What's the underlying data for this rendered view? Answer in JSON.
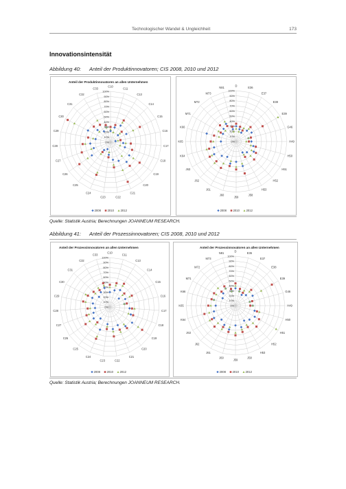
{
  "header": {
    "running_title": "Technologischer Wandel & Ungleichheit",
    "page_number": "173"
  },
  "section_heading": "Innovationsintensität",
  "figures": [
    {
      "label": "Abbildung 40:",
      "caption": "Anteil der Produktinnovatoren; CIS 2008, 2010 und 2012",
      "source": "Quelle: Statistik Austria; Berechnungen JOANNEUM RESEARCH."
    },
    {
      "label": "Abbildung 41:",
      "caption": "Anteil der Prozessinnovatoren; CIS 2008, 2010 und 2012",
      "source": "Quelle: Statistik Austria; Berechnungen JOANNEUM RESEARCH."
    }
  ],
  "series_colors": {
    "2008": "#4472c4",
    "2010": "#c0504d",
    "2012": "#9bbb59"
  },
  "chart_data": [
    {
      "type": "scatter",
      "projection": "radar",
      "title": "Anteil der Produktinnovatoren an allen Unternehmen",
      "radial_ticks": [
        "0%",
        "10%",
        "20%",
        "30%",
        "40%",
        "50%",
        "60%",
        "70%",
        "80%",
        "90%",
        "100%"
      ],
      "categories": [
        "C10",
        "C11",
        "C13",
        "C14",
        "C15",
        "C16",
        "C17",
        "C18",
        "C19",
        "C20",
        "C21",
        "C22",
        "C23",
        "C24",
        "C25",
        "C26",
        "C27",
        "C28",
        "C29",
        "C30",
        "C31",
        "C32",
        "C33"
      ],
      "series": [
        {
          "name": "2008",
          "values": [
            0.22,
            0.3,
            0.38,
            0.2,
            0.35,
            0.1,
            0.25,
            0.3,
            0.45,
            0.5,
            0.4,
            0.35,
            0.25,
            0.15,
            0.2,
            0.45,
            0.35,
            0.4,
            0.3,
            0.5,
            0.35,
            0.25,
            0.3
          ]
        },
        {
          "name": "2010",
          "values": [
            0.3,
            0.35,
            0.5,
            0.3,
            0.65,
            0.2,
            0.4,
            0.45,
            0.7,
            0.6,
            0.85,
            0.5,
            0.3,
            0.7,
            0.25,
            0.75,
            0.6,
            0.55,
            0.45,
            0.95,
            0.45,
            0.4,
            0.35
          ]
        },
        {
          "name": "2012",
          "values": [
            0.25,
            0.2,
            0.45,
            0.25,
            0.5,
            0.15,
            0.3,
            0.2,
            0.55,
            0.35,
            0.6,
            0.45,
            0.2,
            0.65,
            0.3,
            0.55,
            0.4,
            0.5,
            0.35,
            0.8,
            0.3,
            0.5,
            0.3
          ]
        }
      ],
      "legend": "bottom"
    },
    {
      "type": "scatter",
      "projection": "radar",
      "title": "",
      "radial_ticks": [
        "0%",
        "10%",
        "20%",
        "30%",
        "40%",
        "50%",
        "60%",
        "70%",
        "80%",
        "90%",
        "100%"
      ],
      "categories": [
        "D",
        "E36",
        "E37",
        "E38",
        "E39",
        "G46",
        "H49",
        "H50",
        "H51",
        "H52",
        "H53",
        "J58",
        "J59",
        "J60",
        "J61",
        "J62",
        "J63",
        "K64",
        "K65",
        "K66",
        "M71",
        "M72",
        "M73",
        "N81"
      ],
      "series": [
        {
          "name": "2008",
          "values": [
            0.3,
            0.25,
            0.2,
            0.3,
            0.35,
            0.25,
            0.3,
            0.35,
            0.4,
            0.3,
            0.25,
            0.5,
            0.4,
            0.45,
            0.35,
            0.4,
            0.5,
            0.45,
            0.3,
            0.6,
            0.3,
            0.35,
            0.4,
            0.25
          ]
        },
        {
          "name": "2010",
          "values": [
            0.35,
            0.3,
            0.25,
            0.4,
            0.6,
            0.3,
            0.25,
            0.4,
            0.45,
            0.5,
            0.35,
            0.65,
            0.55,
            0.5,
            0.6,
            0.55,
            0.6,
            0.55,
            0.5,
            0.45,
            0.35,
            0.45,
            0.35,
            0.3
          ]
        },
        {
          "name": "2012",
          "values": [
            0.25,
            0.2,
            0.3,
            0.35,
            0.95,
            0.25,
            0.2,
            0.3,
            0.35,
            0.4,
            0.3,
            0.45,
            0.5,
            0.4,
            0.5,
            0.6,
            0.55,
            0.6,
            0.45,
            0.35,
            0.4,
            0.3,
            0.45,
            0.2
          ]
        }
      ],
      "legend": "bottom"
    },
    {
      "type": "scatter",
      "projection": "radar",
      "title": "Anteil der Prozessinnovatoren an allen Unternehmen",
      "radial_ticks": [
        "0%",
        "10%",
        "20%",
        "30%",
        "40%",
        "50%",
        "60%",
        "70%",
        "80%",
        "90%",
        "100%"
      ],
      "categories": [
        "C10",
        "C11",
        "C13",
        "C14",
        "C15",
        "C16",
        "C17",
        "C18",
        "C19",
        "C20",
        "C21",
        "C22",
        "C23",
        "C24",
        "C25",
        "C26",
        "C27",
        "C28",
        "C29",
        "C30",
        "C31",
        "C32",
        "C33"
      ],
      "series": [
        {
          "name": "2008",
          "values": [
            0.3,
            0.35,
            0.4,
            0.25,
            0.35,
            0.3,
            0.4,
            0.45,
            0.55,
            0.5,
            0.4,
            0.45,
            0.35,
            0.5,
            0.3,
            0.4,
            0.35,
            0.3,
            0.35,
            0.4,
            0.3,
            0.35,
            0.4
          ]
        },
        {
          "name": "2010",
          "values": [
            0.45,
            0.5,
            0.55,
            0.4,
            0.5,
            0.35,
            0.45,
            0.5,
            0.8,
            0.55,
            0.5,
            0.6,
            0.45,
            0.7,
            0.4,
            0.6,
            0.5,
            0.45,
            0.55,
            0.5,
            0.45,
            0.4,
            0.5
          ]
        },
        {
          "name": "2012",
          "values": [
            0.4,
            0.45,
            0.5,
            0.35,
            0.45,
            0.3,
            0.5,
            0.4,
            0.7,
            0.45,
            0.55,
            0.5,
            0.4,
            0.65,
            0.45,
            0.5,
            0.45,
            0.4,
            0.5,
            0.55,
            0.4,
            0.45,
            0.45
          ]
        }
      ],
      "legend": "bottom"
    },
    {
      "type": "scatter",
      "projection": "radar",
      "title": "Anteil der Prozessinnovatoren an allen Unternehmen",
      "radial_ticks": [
        "0%",
        "10%",
        "20%",
        "30%",
        "40%",
        "50%",
        "60%",
        "70%",
        "80%",
        "90%",
        "100%"
      ],
      "categories": [
        "D",
        "E36",
        "E37",
        "E38",
        "E39",
        "G46",
        "H49",
        "H50",
        "H51",
        "H52",
        "H53",
        "J58",
        "J59",
        "J60",
        "J61",
        "J62",
        "J63",
        "K64",
        "K65",
        "K66",
        "M71",
        "M72",
        "M73",
        "N81"
      ],
      "series": [
        {
          "name": "2008",
          "values": [
            0.35,
            0.3,
            0.25,
            0.3,
            0.4,
            0.3,
            0.35,
            0.4,
            0.45,
            0.4,
            0.35,
            0.45,
            0.4,
            0.5,
            0.45,
            0.4,
            0.5,
            0.45,
            0.4,
            0.45,
            0.3,
            0.35,
            0.4,
            0.3
          ]
        },
        {
          "name": "2010",
          "values": [
            0.45,
            0.35,
            0.3,
            0.45,
            0.85,
            0.35,
            0.3,
            0.45,
            0.55,
            0.6,
            0.5,
            0.55,
            0.6,
            0.55,
            0.5,
            0.6,
            0.55,
            0.65,
            0.55,
            0.5,
            0.5,
            0.4,
            0.45,
            0.35
          ]
        },
        {
          "name": "2012",
          "values": [
            0.4,
            0.3,
            0.35,
            0.4,
            0.6,
            0.3,
            0.35,
            0.5,
            0.95,
            0.5,
            0.45,
            0.5,
            0.55,
            0.45,
            0.55,
            0.5,
            0.6,
            0.55,
            0.5,
            0.45,
            0.45,
            0.5,
            0.4,
            0.3
          ]
        }
      ],
      "legend": "bottom"
    }
  ]
}
